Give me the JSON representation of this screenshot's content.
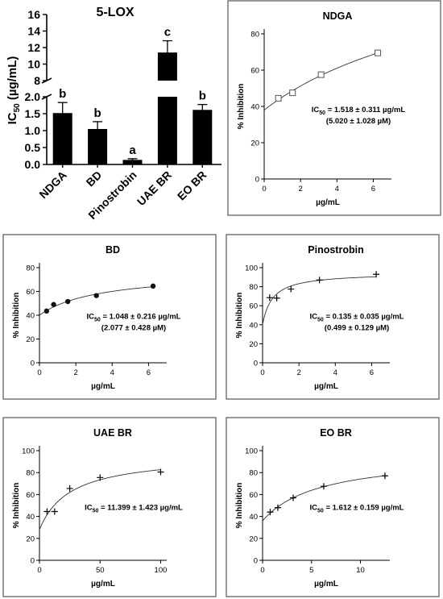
{
  "chart_data": [
    {
      "type": "bar",
      "title": "5-LOX",
      "ylabel": "IC",
      "ylabel_sub": "50",
      "ylabel_unit": " (µg/mL)",
      "categories": [
        "NDGA",
        "BD",
        "Pinostrobin",
        "UAE BR",
        "EO BR"
      ],
      "values": [
        1.518,
        1.048,
        0.135,
        11.399,
        1.612
      ],
      "errors": [
        0.311,
        0.216,
        0.035,
        1.423,
        0.159
      ],
      "letters": [
        "b",
        "b",
        "a",
        "c",
        "b"
      ],
      "y_axis_break": true,
      "ylim_lower": [
        0,
        2.0
      ],
      "ylim_upper": [
        8,
        16
      ],
      "yticks_lower": [
        "0.0",
        "0.5",
        "1.0",
        "1.5",
        "2.0"
      ],
      "yticks_upper": [
        "8",
        "10",
        "12",
        "14",
        "16"
      ],
      "bar_color": "#000000"
    },
    {
      "type": "scatter",
      "title": "NDGA",
      "xlabel": "µg/mL",
      "ylabel": "% Inhibition",
      "xlim": [
        0,
        7
      ],
      "ylim": [
        0,
        80
      ],
      "xticks": [
        0,
        2,
        4,
        6
      ],
      "yticks": [
        0,
        20,
        40,
        60,
        80
      ],
      "marker": "square",
      "x": [
        0.78,
        1.56,
        3.13,
        6.25
      ],
      "y": [
        44.5,
        47.5,
        57.5,
        69.5
      ],
      "ic50_main": "IC",
      "ic50_sub": "50",
      "ic50_value": " = 1.518 ± 0.311 µg/mL",
      "ic50_molar": "(5.020 ± 1.028 µM)"
    },
    {
      "type": "scatter",
      "title": "BD",
      "xlabel": "µg/mL",
      "ylabel": "% Inhibition",
      "xlim": [
        0,
        7
      ],
      "ylim": [
        0,
        80
      ],
      "xticks": [
        0,
        2,
        4,
        6
      ],
      "yticks": [
        0,
        20,
        40,
        60,
        80
      ],
      "marker": "circle",
      "x": [
        0.39,
        0.78,
        1.56,
        3.13,
        6.25
      ],
      "y": [
        43.5,
        49.0,
        51.5,
        56.5,
        64.5
      ],
      "ic50_main": "IC",
      "ic50_sub": "50",
      "ic50_value": " = 1.048 ± 0.216 µg/mL",
      "ic50_molar": "(2.077 ± 0.428 µM)"
    },
    {
      "type": "scatter",
      "title": "Pinostrobin",
      "xlabel": "µg/mL",
      "ylabel": "% Inhibition",
      "xlim": [
        0,
        7
      ],
      "ylim": [
        0,
        100
      ],
      "xticks": [
        0,
        2,
        4,
        6
      ],
      "yticks": [
        0,
        20,
        40,
        60,
        80,
        100
      ],
      "marker": "plus",
      "x": [
        0.39,
        0.78,
        1.56,
        3.13,
        6.25
      ],
      "y": [
        68.5,
        68.0,
        77.5,
        87.0,
        93.0
      ],
      "ic50_main": "IC",
      "ic50_sub": "50",
      "ic50_value": " = 0.135 ± 0.035 µg/mL",
      "ic50_molar": "(0.499 ± 0.129 µM)"
    },
    {
      "type": "scatter",
      "title": "UAE BR",
      "xlabel": "µg/mL",
      "ylabel": "% Inhibition",
      "xlim": [
        0,
        105
      ],
      "ylim": [
        0,
        100
      ],
      "xticks": [
        0,
        50,
        100
      ],
      "yticks": [
        0,
        20,
        40,
        60,
        80,
        100
      ],
      "marker": "plus",
      "x": [
        6.25,
        12.5,
        25,
        50,
        100
      ],
      "y": [
        44.5,
        44.5,
        65.5,
        75.5,
        80.5
      ],
      "ic50_main": "IC",
      "ic50_sub": "50",
      "ic50_value": " = 11.399 ± 1.423 µg/mL",
      "ic50_molar": ""
    },
    {
      "type": "scatter",
      "title": "EO BR",
      "xlabel": "µg/mL",
      "ylabel": "% Inhibition",
      "xlim": [
        0,
        13
      ],
      "ylim": [
        0,
        100
      ],
      "xticks": [
        0,
        5,
        10
      ],
      "yticks": [
        0,
        20,
        40,
        60,
        80,
        100
      ],
      "marker": "plus",
      "x": [
        0.78,
        1.56,
        3.13,
        6.25,
        12.5
      ],
      "y": [
        44.0,
        48.0,
        57.0,
        67.5,
        77.0
      ],
      "ic50_main": "IC",
      "ic50_sub": "50",
      "ic50_value": " = 1.612 ± 0.159 µg/mL",
      "ic50_molar": ""
    }
  ]
}
